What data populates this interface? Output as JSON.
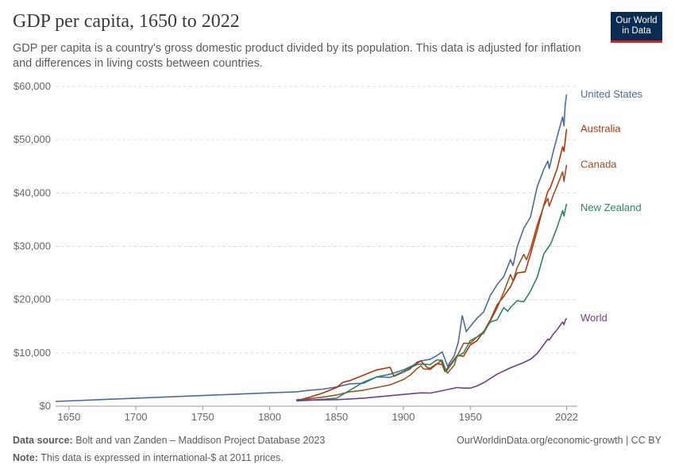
{
  "header": {
    "title": "GDP per capita, 1650 to 2022",
    "subtitle": "GDP per capita is a country's gross domestic product divided by its population. This data is adjusted for inflation and differences in living costs between countries.",
    "logo_line1": "Our World",
    "logo_line2": "in Data"
  },
  "footer": {
    "source_label": "Data source:",
    "source_text": "Bolt and van Zanden – Maddison Project Database 2023",
    "note_label": "Note:",
    "note_text": "This data is expressed in international-$ at 2011 prices.",
    "url": "OurWorldinData.org/economic-growth | CC BY"
  },
  "colors": {
    "United States": "#4c6a9c",
    "Australia": "#b13507",
    "Canada": "#9a5129",
    "New Zealand": "#2c8465",
    "World": "#6d3e91",
    "grid": "#dddddd",
    "axis": "#666666"
  },
  "chart_data": {
    "type": "line",
    "xlim": [
      1640,
      2030
    ],
    "ylim": [
      0,
      60000
    ],
    "x_ticks": [
      1650,
      1700,
      1750,
      1800,
      1850,
      1900,
      1950,
      2022
    ],
    "x_tick_labels": [
      "1650",
      "1700",
      "1750",
      "1800",
      "1850",
      "1900",
      "1950",
      "2022"
    ],
    "y_ticks": [
      0,
      10000,
      20000,
      30000,
      40000,
      50000,
      60000
    ],
    "y_tick_labels": [
      "$0",
      "$10,000",
      "$20,000",
      "$30,000",
      "$40,000",
      "$50,000",
      "$60,000"
    ],
    "grid": "horizontal dashed",
    "legend": "line-end labels",
    "series": [
      {
        "name": "United States",
        "x": [
          1640,
          1700,
          1750,
          1800,
          1820,
          1830,
          1840,
          1850,
          1860,
          1870,
          1880,
          1890,
          1900,
          1910,
          1913,
          1920,
          1925,
          1929,
          1933,
          1938,
          1941,
          1944,
          1947,
          1950,
          1955,
          1960,
          1965,
          1970,
          1975,
          1980,
          1982,
          1985,
          1990,
          1995,
          2000,
          2005,
          2008,
          2009,
          2012,
          2015,
          2019,
          2020,
          2021,
          2022
        ],
        "values": [
          900,
          1500,
          2000,
          2500,
          2700,
          3000,
          3200,
          3600,
          4200,
          4300,
          5500,
          6000,
          6800,
          8000,
          8500,
          8800,
          9500,
          10200,
          7500,
          9500,
          12000,
          17000,
          14000,
          15000,
          16500,
          17700,
          20800,
          22800,
          24300,
          27500,
          26400,
          29900,
          33400,
          35500,
          41200,
          44500,
          46000,
          44600,
          47800,
          50600,
          54300,
          52600,
          56600,
          58500
        ]
      },
      {
        "name": "Australia",
        "x": [
          1820,
          1830,
          1840,
          1850,
          1855,
          1860,
          1870,
          1880,
          1890,
          1893,
          1900,
          1905,
          1910,
          1913,
          1918,
          1920,
          1925,
          1929,
          1931,
          1935,
          1940,
          1945,
          1950,
          1955,
          1960,
          1965,
          1970,
          1975,
          1980,
          1985,
          1991,
          1995,
          2000,
          2005,
          2008,
          2010,
          2015,
          2019,
          2020,
          2022
        ],
        "values": [
          1000,
          1700,
          2500,
          3500,
          4500,
          4800,
          5800,
          6800,
          7300,
          5600,
          6400,
          7000,
          8200,
          8500,
          7200,
          7100,
          8000,
          7800,
          6500,
          7800,
          9500,
          9400,
          11500,
          12300,
          14000,
          16200,
          19000,
          20600,
          22400,
          25000,
          25200,
          28500,
          33000,
          37800,
          40300,
          41100,
          44600,
          48700,
          47800,
          52000
        ]
      },
      {
        "name": "Canada",
        "x": [
          1820,
          1830,
          1840,
          1850,
          1860,
          1870,
          1880,
          1890,
          1900,
          1905,
          1910,
          1913,
          1915,
          1920,
          1925,
          1928,
          1933,
          1938,
          1940,
          1945,
          1950,
          1955,
          1960,
          1965,
          1970,
          1975,
          1980,
          1982,
          1985,
          1990,
          1992,
          1995,
          2000,
          2005,
          2008,
          2009,
          2012,
          2015,
          2019,
          2020,
          2022
        ],
        "values": [
          1200,
          1400,
          1700,
          2100,
          2700,
          3000,
          3500,
          4000,
          5000,
          5800,
          7000,
          7600,
          7000,
          6900,
          7900,
          8500,
          6200,
          7700,
          9300,
          11800,
          11800,
          13000,
          13700,
          16000,
          18400,
          21400,
          24700,
          23500,
          26000,
          28500,
          27500,
          29500,
          34000,
          37600,
          39000,
          37500,
          39600,
          41400,
          44000,
          42200,
          45300
        ]
      },
      {
        "name": "New Zealand",
        "x": [
          1820,
          1830,
          1840,
          1850,
          1860,
          1870,
          1880,
          1890,
          1900,
          1905,
          1910,
          1913,
          1920,
          1925,
          1929,
          1932,
          1935,
          1940,
          1945,
          1950,
          1955,
          1960,
          1965,
          1970,
          1975,
          1978,
          1980,
          1985,
          1990,
          1995,
          2000,
          2005,
          2008,
          2010,
          2015,
          2019,
          2020,
          2022
        ],
        "values": [
          1000,
          1100,
          1300,
          1500,
          3000,
          4500,
          5500,
          5400,
          6500,
          7200,
          7800,
          7900,
          7800,
          8700,
          8600,
          6500,
          7600,
          9300,
          10000,
          12300,
          13000,
          14000,
          15800,
          16200,
          18500,
          17800,
          18500,
          19800,
          19600,
          21600,
          24200,
          28600,
          29700,
          30400,
          33600,
          36700,
          35700,
          38000
        ]
      },
      {
        "name": "World",
        "x": [
          1820,
          1850,
          1870,
          1900,
          1913,
          1920,
          1929,
          1940,
          1945,
          1950,
          1955,
          1960,
          1965,
          1970,
          1975,
          1980,
          1985,
          1990,
          1995,
          2000,
          2005,
          2008,
          2009,
          2012,
          2015,
          2019,
          2020,
          2021,
          2022
        ],
        "values": [
          1100,
          1225,
          1500,
          2200,
          2500,
          2450,
          2900,
          3500,
          3400,
          3400,
          3800,
          4400,
          5200,
          6000,
          6600,
          7200,
          7700,
          8200,
          8800,
          9900,
          11600,
          12600,
          12400,
          13500,
          14400,
          15800,
          15300,
          16100,
          16500
        ]
      }
    ]
  }
}
